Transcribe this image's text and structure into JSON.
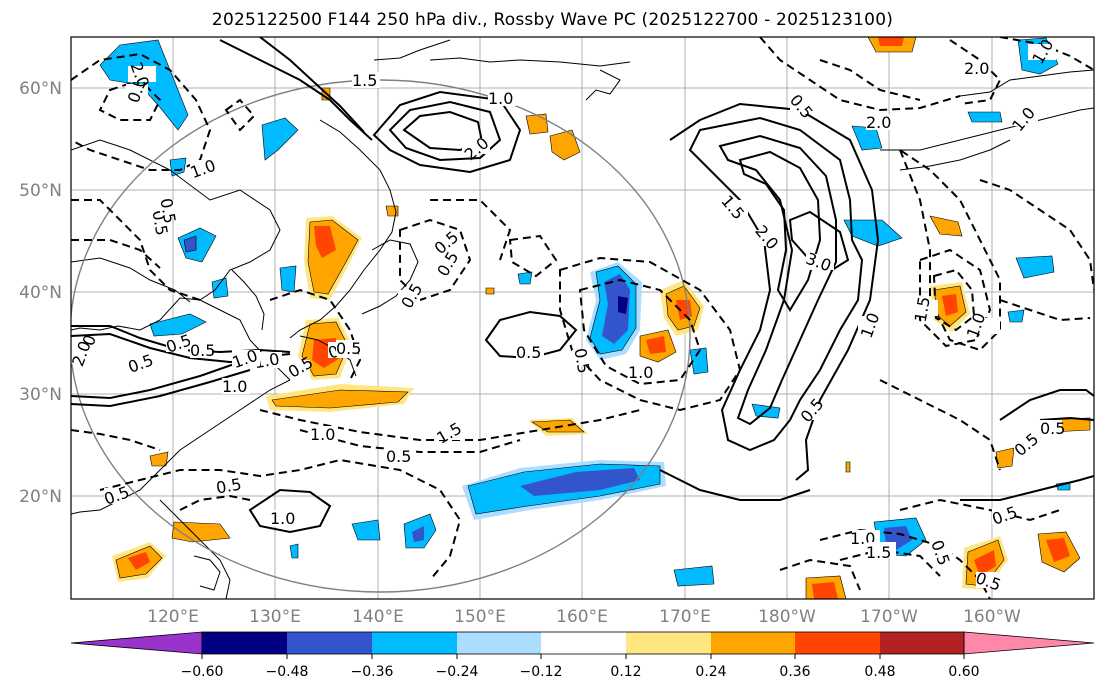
{
  "title": "2025122500 F144 250 hPa div., Rossby Wave PC (2025122700 - 2025123100)",
  "map": {
    "lat_labels": [
      "60°N",
      "50°N",
      "40°N",
      "30°N",
      "20°N"
    ],
    "lon_labels": [
      "120°E",
      "130°E",
      "140°E",
      "150°E",
      "160°E",
      "170°E",
      "180°W",
      "170°W",
      "160°W"
    ],
    "contour_labels": [
      "0.5",
      "1.5",
      "1.0",
      "2.0",
      "0.5",
      "2.0",
      "2.0",
      "0.5",
      "2.0",
      "1.0",
      "1.0",
      "0.5",
      "0.5",
      "0.5",
      "1.0",
      "0.5",
      "0.5",
      "1.0",
      "0.5",
      "0.5",
      "1.5",
      "2.0",
      "3.0",
      "1.0",
      "0.5",
      "1.0",
      "1.5",
      "0.5",
      "1.0",
      "1.0",
      "1.5",
      "0.5",
      "0.5",
      "0.5",
      "1.0",
      "0.5",
      "2.0",
      "0.5",
      "0.5",
      "1.0",
      "1.5",
      "0.5",
      "0.5",
      "0.5",
      "1.0",
      "0.5",
      "0.5",
      "1.0",
      "0.5",
      "1.0"
    ]
  },
  "colorbar": {
    "ticks": [
      "−0.60",
      "−0.48",
      "−0.36",
      "−0.24",
      "−0.12",
      "0.12",
      "0.24",
      "0.36",
      "0.48",
      "0.60"
    ],
    "colors": [
      "#9933cc",
      "#000080",
      "#3355cc",
      "#00bbff",
      "#aaddff",
      "#ffffff",
      "#ffe680",
      "#ffa500",
      "#ff4500",
      "#b22222",
      "#ff88aa"
    ]
  },
  "fill_colors": {
    "neg3": "#3355cc",
    "neg2": "#00bbff",
    "neg1": "#aaddff",
    "pos1": "#ffe680",
    "pos2": "#ffa500",
    "pos3": "#ff4500"
  }
}
